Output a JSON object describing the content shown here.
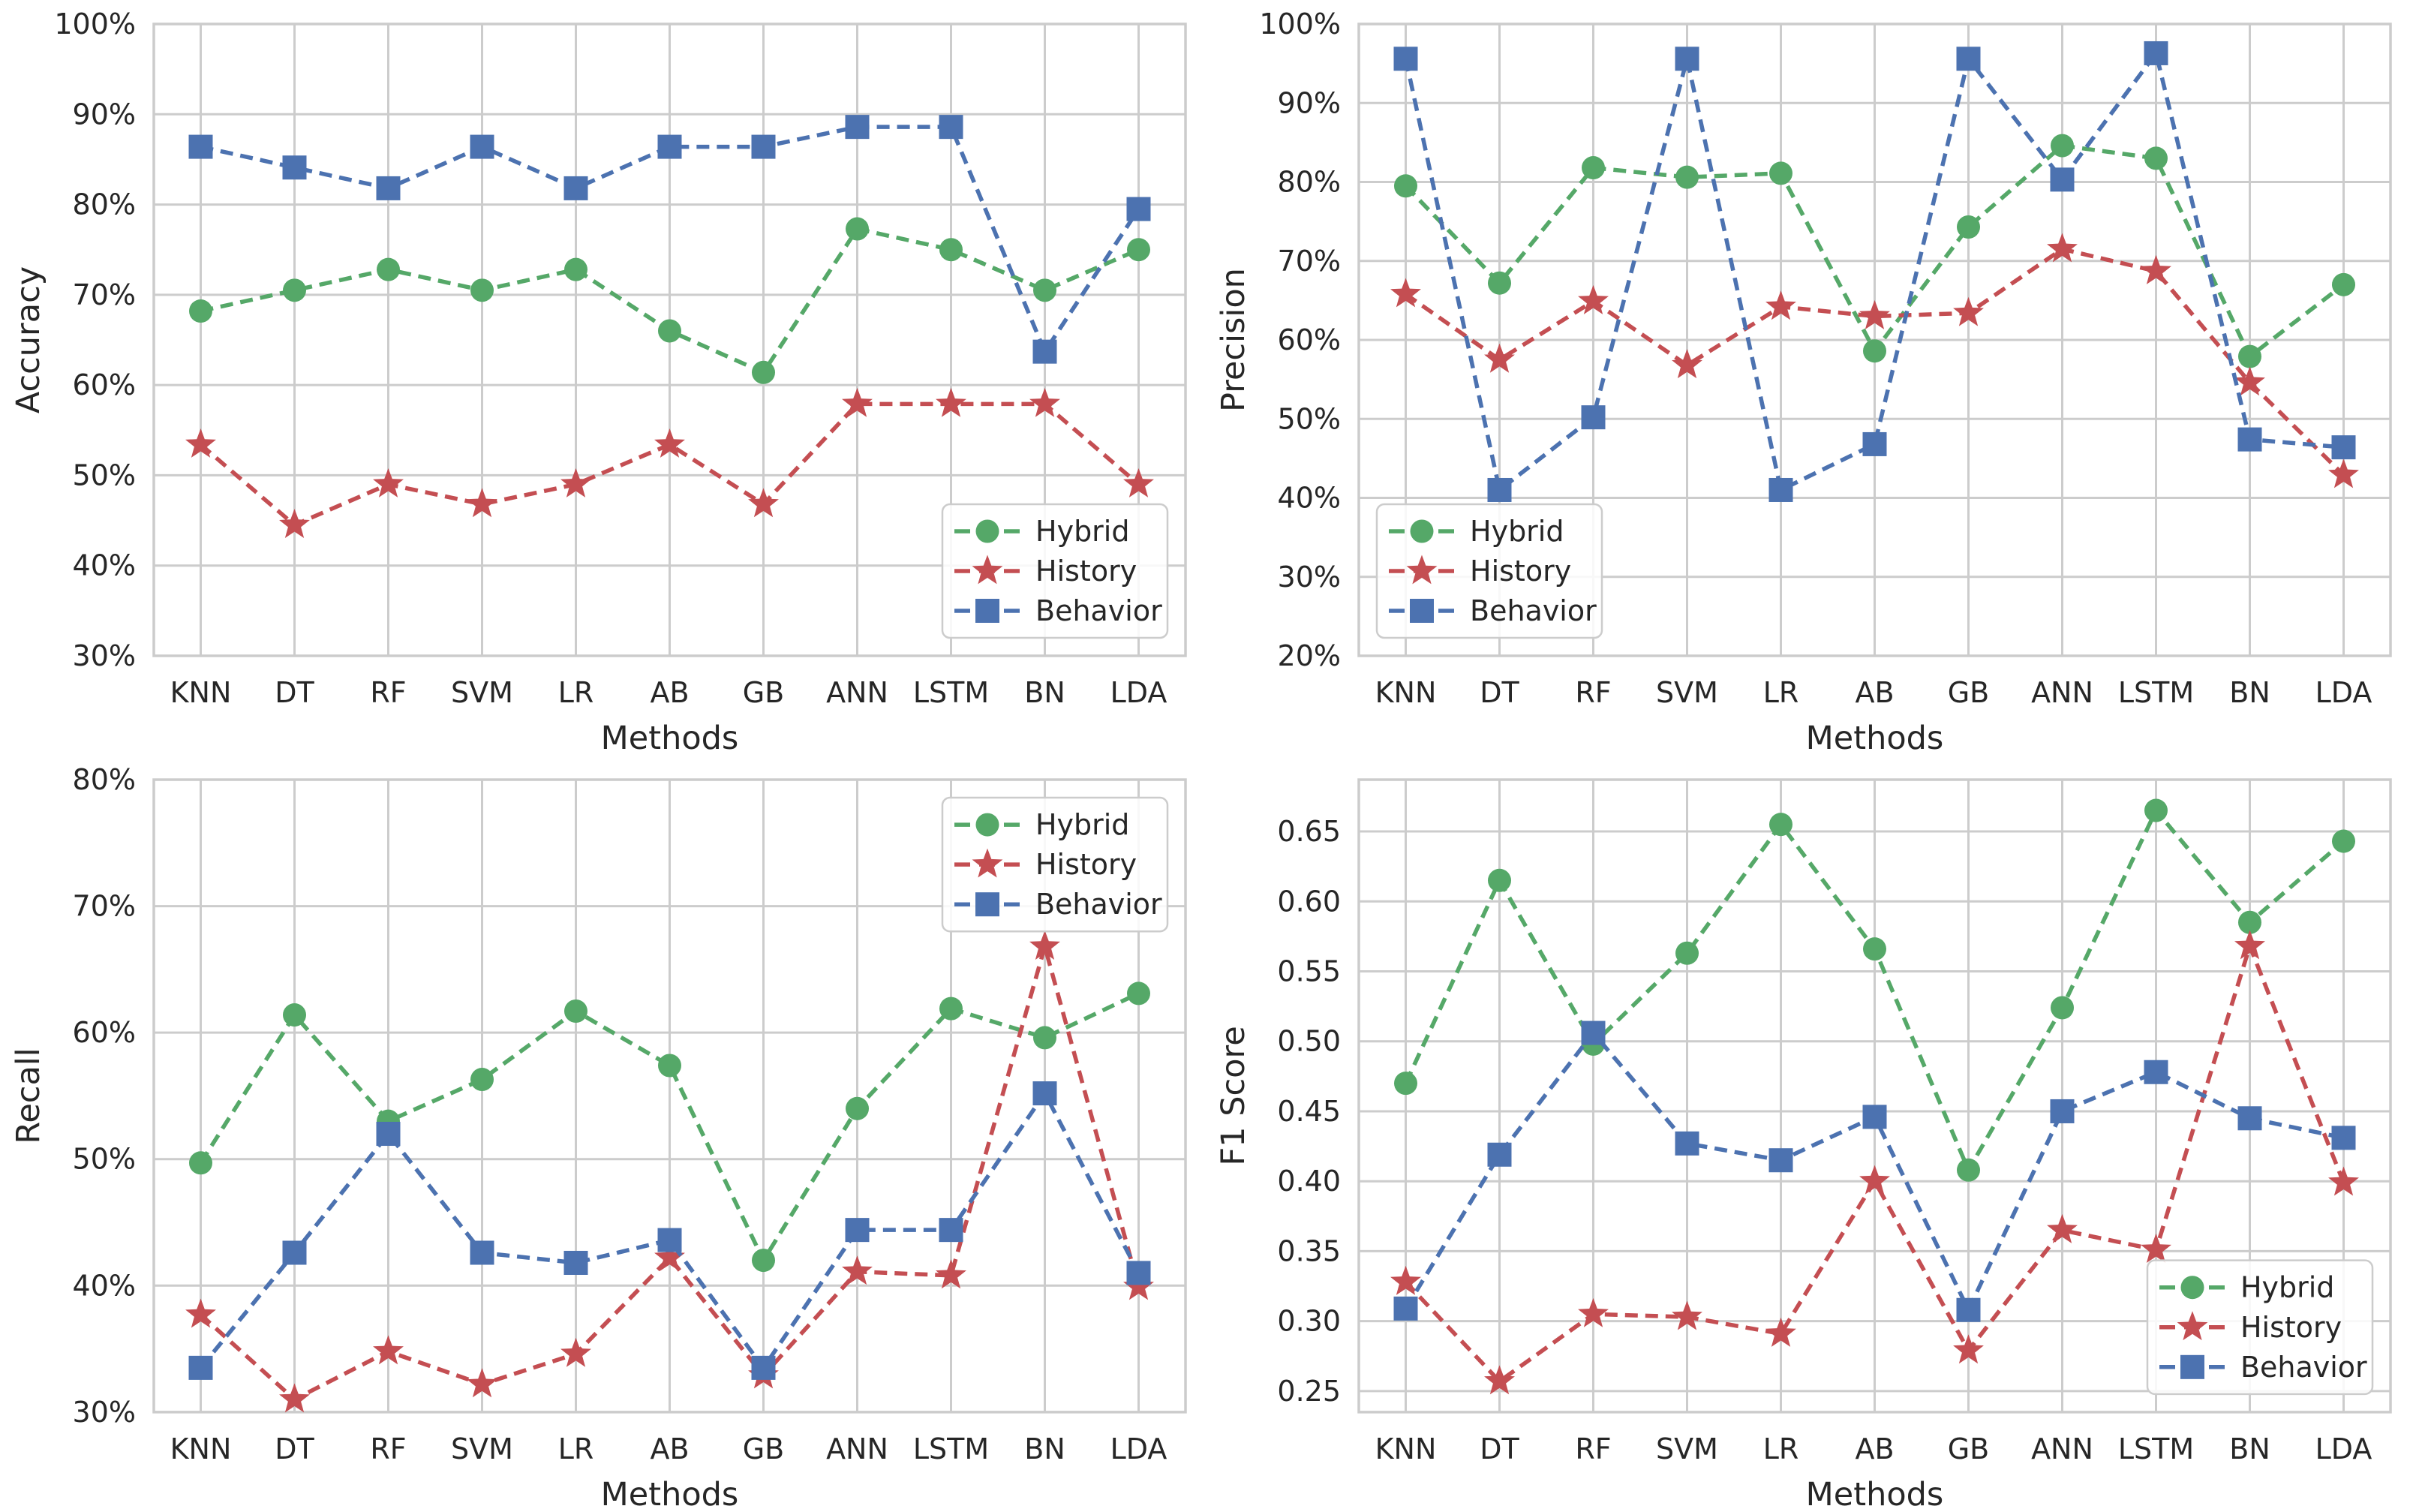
{
  "page": {
    "background": "#ffffff"
  },
  "colors": {
    "hybrid": "#55A868",
    "history": "#C44E52",
    "behavior": "#4C72B0",
    "grid": "#CCCCCC",
    "spine": "#CCCCCC",
    "text": "#262626",
    "legend_border": "#CCCCCC",
    "legend_fill": "#FFFFFF"
  },
  "chart_data": {
    "type": "line",
    "categories": [
      "KNN",
      "DT",
      "RF",
      "SVM",
      "LR",
      "AB",
      "GB",
      "ANN",
      "LSTM",
      "BN",
      "LDA"
    ],
    "xlabel": "Methods",
    "legend_entries": [
      "Hybrid",
      "History",
      "Behavior"
    ],
    "grid": true,
    "line_style": "dashed",
    "subplots": [
      {
        "id": "accuracy",
        "ylabel": "Accuracy",
        "unit": "percent",
        "ylim": [
          30,
          100
        ],
        "ytick_values": [
          30,
          40,
          50,
          60,
          70,
          80,
          90,
          100
        ],
        "ytick_labels": [
          "30%",
          "40%",
          "50%",
          "60%",
          "70%",
          "80%",
          "90%",
          "100%"
        ],
        "legend_position": "lower-right",
        "series": [
          {
            "name": "Hybrid",
            "marker": "circle",
            "color": "#55A868",
            "values": [
              68.2,
              70.5,
              72.8,
              70.5,
              72.8,
              66.0,
              61.4,
              77.3,
              75.0,
              70.5,
              75.0
            ]
          },
          {
            "name": "History",
            "marker": "star",
            "color": "#C44E52",
            "values": [
              53.4,
              44.5,
              49.0,
              46.8,
              49.0,
              53.4,
              46.8,
              57.9,
              57.9,
              57.9,
              49.0
            ]
          },
          {
            "name": "Behavior",
            "marker": "square",
            "color": "#4C72B0",
            "values": [
              86.4,
              84.1,
              81.8,
              86.4,
              81.8,
              86.4,
              86.4,
              88.6,
              88.6,
              63.7,
              79.5
            ]
          }
        ]
      },
      {
        "id": "precision",
        "ylabel": "Precision",
        "unit": "percent",
        "ylim": [
          20,
          100
        ],
        "ytick_values": [
          20,
          30,
          40,
          50,
          60,
          70,
          80,
          90,
          100
        ],
        "ytick_labels": [
          "20%",
          "30%",
          "40%",
          "50%",
          "60%",
          "70%",
          "80%",
          "90%",
          "100%"
        ],
        "legend_position": "lower-left",
        "series": [
          {
            "name": "Hybrid",
            "marker": "circle",
            "color": "#55A868",
            "values": [
              79.5,
              67.2,
              81.8,
              80.6,
              81.1,
              58.6,
              74.3,
              84.6,
              83.0,
              57.9,
              67.0
            ]
          },
          {
            "name": "History",
            "marker": "star",
            "color": "#C44E52",
            "values": [
              65.8,
              57.5,
              64.9,
              56.8,
              64.2,
              63.0,
              63.4,
              71.5,
              68.7,
              54.6,
              42.9
            ]
          },
          {
            "name": "Behavior",
            "marker": "square",
            "color": "#4C72B0",
            "values": [
              95.6,
              41.0,
              50.2,
              95.6,
              41.0,
              46.8,
              95.6,
              80.3,
              96.3,
              47.4,
              46.4
            ]
          }
        ]
      },
      {
        "id": "recall",
        "ylabel": "Recall",
        "unit": "percent",
        "ylim": [
          30,
          80
        ],
        "ytick_values": [
          30,
          40,
          50,
          60,
          70,
          80
        ],
        "ytick_labels": [
          "30%",
          "40%",
          "50%",
          "60%",
          "70%",
          "80%"
        ],
        "legend_position": "upper-right",
        "series": [
          {
            "name": "Hybrid",
            "marker": "circle",
            "color": "#55A868",
            "values": [
              49.7,
              61.4,
              53.0,
              56.3,
              61.7,
              57.4,
              42.0,
              54.0,
              61.9,
              59.6,
              63.1
            ]
          },
          {
            "name": "History",
            "marker": "star",
            "color": "#C44E52",
            "values": [
              37.7,
              31.0,
              34.8,
              32.2,
              34.6,
              42.2,
              32.9,
              41.1,
              40.8,
              66.8,
              39.9
            ]
          },
          {
            "name": "Behavior",
            "marker": "square",
            "color": "#4C72B0",
            "values": [
              33.5,
              42.6,
              52.0,
              42.6,
              41.8,
              43.6,
              33.5,
              44.4,
              44.4,
              55.2,
              41.0
            ]
          }
        ]
      },
      {
        "id": "f1-score",
        "ylabel": "F1 Score",
        "unit": "decimal",
        "ylim": [
          0.235,
          0.687
        ],
        "ytick_values": [
          0.25,
          0.3,
          0.35,
          0.4,
          0.45,
          0.5,
          0.55,
          0.6,
          0.65
        ],
        "ytick_labels": [
          "0.25",
          "0.30",
          "0.35",
          "0.40",
          "0.45",
          "0.50",
          "0.55",
          "0.60",
          "0.65"
        ],
        "legend_position": "lower-right",
        "series": [
          {
            "name": "Hybrid",
            "marker": "circle",
            "color": "#55A868",
            "values": [
              0.47,
              0.615,
              0.498,
              0.563,
              0.655,
              0.566,
              0.408,
              0.524,
              0.665,
              0.585,
              0.643
            ]
          },
          {
            "name": "History",
            "marker": "star",
            "color": "#C44E52",
            "values": [
              0.328,
              0.257,
              0.305,
              0.303,
              0.291,
              0.4,
              0.279,
              0.365,
              0.351,
              0.568,
              0.399
            ]
          },
          {
            "name": "Behavior",
            "marker": "square",
            "color": "#4C72B0",
            "values": [
              0.309,
              0.419,
              0.506,
              0.427,
              0.415,
              0.446,
              0.308,
              0.45,
              0.478,
              0.445,
              0.431
            ]
          }
        ]
      }
    ]
  }
}
